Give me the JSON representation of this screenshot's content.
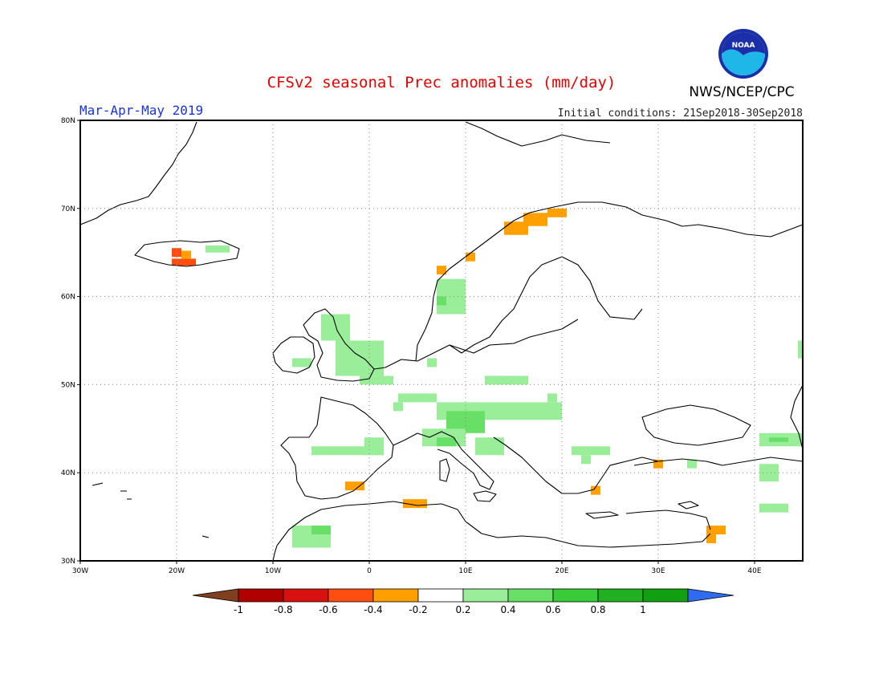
{
  "title": "CFSv2 seasonal Prec anomalies (mm/day)",
  "season": "Mar-Apr-May 2019",
  "initial_conditions": "Initial conditions: 21Sep2018-30Sep2018",
  "organization": "NWS/NCEP/CPC",
  "logo_text": "NOAA",
  "map": {
    "lon_range": [
      -30,
      45
    ],
    "lat_range": [
      30,
      80
    ],
    "lat_ticks": [
      {
        "value": 80,
        "label": "80N"
      },
      {
        "value": 70,
        "label": "70N"
      },
      {
        "value": 60,
        "label": "60N"
      },
      {
        "value": 50,
        "label": "50N"
      },
      {
        "value": 40,
        "label": "40N"
      },
      {
        "value": 30,
        "label": "30N"
      }
    ],
    "lon_ticks": [
      {
        "value": -30,
        "label": "30W"
      },
      {
        "value": -20,
        "label": "20W"
      },
      {
        "value": -10,
        "label": "10W"
      },
      {
        "value": 0,
        "label": "0"
      },
      {
        "value": 10,
        "label": "10E"
      },
      {
        "value": 20,
        "label": "20E"
      },
      {
        "value": 30,
        "label": "30E"
      },
      {
        "value": 40,
        "label": "40E"
      }
    ],
    "gridlines": "dotted",
    "anomaly_cells": [
      {
        "lon": -20.5,
        "lat": 64.5,
        "lon2": -19.5,
        "lat2": 65.5,
        "class": "-0.6"
      },
      {
        "lon": -20.5,
        "lat": 63.5,
        "lon2": -18,
        "lat2": 64.3,
        "class": "-0.6"
      },
      {
        "lon": -19.5,
        "lat": 64.3,
        "lon2": -18.5,
        "lat2": 65.2,
        "class": "-0.4"
      },
      {
        "lon": -17,
        "lat": 65,
        "lon2": -14.5,
        "lat2": 65.8,
        "class": "0.2"
      },
      {
        "lon": -8,
        "lat": 52,
        "lon2": -6,
        "lat2": 53,
        "class": "0.2"
      },
      {
        "lon": -5,
        "lat": 55,
        "lon2": -2,
        "lat2": 58,
        "class": "0.2"
      },
      {
        "lon": -3.5,
        "lat": 51,
        "lon2": 1.5,
        "lat2": 55,
        "class": "0.2"
      },
      {
        "lon": -1,
        "lat": 50,
        "lon2": 1.5,
        "lat2": 51,
        "class": "0.2"
      },
      {
        "lon": 1.5,
        "lat": 50,
        "lon2": 2.5,
        "lat2": 51,
        "class": "0.2"
      },
      {
        "lon": 3,
        "lat": 48,
        "lon2": 7,
        "lat2": 49,
        "class": "0.2"
      },
      {
        "lon": 6,
        "lat": 52,
        "lon2": 7,
        "lat2": 53,
        "class": "0.2"
      },
      {
        "lon": 2.5,
        "lat": 47,
        "lon2": 3.5,
        "lat2": 48,
        "class": "0.2"
      },
      {
        "lon": 7,
        "lat": 58,
        "lon2": 10,
        "lat2": 62,
        "class": "0.2"
      },
      {
        "lon": 7,
        "lat": 59,
        "lon2": 8,
        "lat2": 60,
        "class": "0.4"
      },
      {
        "lon": 7,
        "lat": 46,
        "lon2": 20,
        "lat2": 48,
        "class": "0.2"
      },
      {
        "lon": 8,
        "lat": 44.5,
        "lon2": 12,
        "lat2": 47,
        "class": "0.4"
      },
      {
        "lon": 5.5,
        "lat": 43,
        "lon2": 10,
        "lat2": 45,
        "class": "0.2"
      },
      {
        "lon": 7,
        "lat": 43,
        "lon2": 9,
        "lat2": 44,
        "class": "0.4"
      },
      {
        "lon": 11,
        "lat": 42,
        "lon2": 14,
        "lat2": 44,
        "class": "0.2"
      },
      {
        "lon": 12,
        "lat": 50,
        "lon2": 16.5,
        "lat2": 51,
        "class": "0.2"
      },
      {
        "lon": 18.5,
        "lat": 48,
        "lon2": 19.5,
        "lat2": 49,
        "class": "0.2"
      },
      {
        "lon": -6,
        "lat": 42,
        "lon2": 1.5,
        "lat2": 43,
        "class": "0.2"
      },
      {
        "lon": -0.5,
        "lat": 42,
        "lon2": 1.5,
        "lat2": 44,
        "class": "0.2"
      },
      {
        "lon": 21,
        "lat": 42,
        "lon2": 25,
        "lat2": 43,
        "class": "0.2"
      },
      {
        "lon": 22,
        "lat": 41,
        "lon2": 23,
        "lat2": 42,
        "class": "0.2"
      },
      {
        "lon": -8,
        "lat": 31.5,
        "lon2": -4,
        "lat2": 34,
        "class": "0.2"
      },
      {
        "lon": -6,
        "lat": 33,
        "lon2": -4,
        "lat2": 34,
        "class": "0.4"
      },
      {
        "lon": 40.5,
        "lat": 43,
        "lon2": 45,
        "lat2": 44.5,
        "class": "0.2"
      },
      {
        "lon": 41.5,
        "lat": 43.5,
        "lon2": 43.5,
        "lat2": 44,
        "class": "0.4"
      },
      {
        "lon": 40.5,
        "lat": 39,
        "lon2": 42.5,
        "lat2": 41,
        "class": "0.2"
      },
      {
        "lon": 40.5,
        "lat": 35.5,
        "lon2": 43.5,
        "lat2": 36.5,
        "class": "0.2"
      },
      {
        "lon": 44.5,
        "lat": 53,
        "lon2": 45,
        "lat2": 55,
        "class": "0.2"
      },
      {
        "lon": 33,
        "lat": 40.5,
        "lon2": 34,
        "lat2": 41.5,
        "class": "0.2"
      },
      {
        "lon": -2.5,
        "lat": 38,
        "lon2": -0.5,
        "lat2": 39,
        "class": "-0.4"
      },
      {
        "lon": 3.5,
        "lat": 36,
        "lon2": 6,
        "lat2": 37,
        "class": "-0.4"
      },
      {
        "lon": 7,
        "lat": 62.5,
        "lon2": 8,
        "lat2": 63.5,
        "class": "-0.4"
      },
      {
        "lon": 10,
        "lat": 64,
        "lon2": 11,
        "lat2": 65,
        "class": "-0.4"
      },
      {
        "lon": 14,
        "lat": 67,
        "lon2": 16.5,
        "lat2": 68.5,
        "class": "-0.4"
      },
      {
        "lon": 16,
        "lat": 68,
        "lon2": 18.5,
        "lat2": 69.5,
        "class": "-0.4"
      },
      {
        "lon": 18.5,
        "lat": 69,
        "lon2": 20.5,
        "lat2": 70,
        "class": "-0.4"
      },
      {
        "lon": 29.5,
        "lat": 40.5,
        "lon2": 30.5,
        "lat2": 41.5,
        "class": "-0.4"
      },
      {
        "lon": 23,
        "lat": 37.5,
        "lon2": 24,
        "lat2": 38.5,
        "class": "-0.4"
      },
      {
        "lon": 35,
        "lat": 33,
        "lon2": 37,
        "lat2": 34,
        "class": "-0.4"
      },
      {
        "lon": 35,
        "lat": 32,
        "lon2": 36,
        "lat2": 33,
        "class": "-0.4"
      }
    ]
  },
  "colorbar": {
    "colors": [
      "#804020",
      "#b00000",
      "#d81010",
      "#ff4e10",
      "#ffa000",
      "#ffffff",
      "#9aee9a",
      "#68e068",
      "#38cc38",
      "#20b020",
      "#10a010",
      "#2f6cf0"
    ],
    "ticks": [
      "-1",
      "-0.8",
      "-0.6",
      "-0.4",
      "-0.2",
      "0.2",
      "0.4",
      "0.6",
      "0.8",
      "1"
    ]
  },
  "class_colors": {
    "-0.6": "#ff4e10",
    "-0.4": "#ffa000",
    "0.2": "#9aee9a",
    "0.4": "#68e068"
  }
}
